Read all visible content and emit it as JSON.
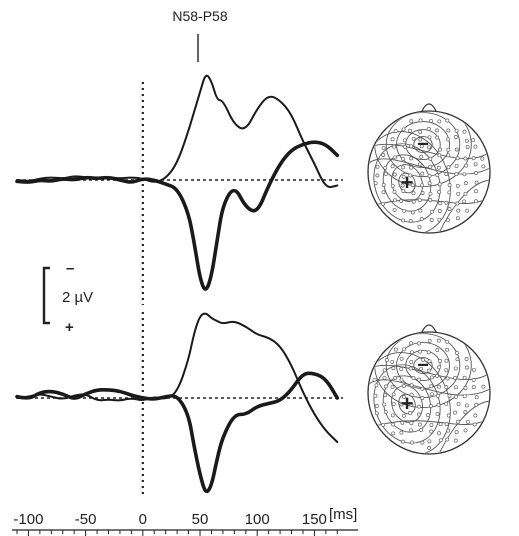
{
  "chart_data": {
    "type": "line",
    "annotation": "N58-P58",
    "scale_bar": {
      "label": "2 µV",
      "neg_sign": "–",
      "pos_sign": "+",
      "amplitude_uV": 2
    },
    "x_unit_label": "[ms]",
    "x_ticks": [
      -100,
      -50,
      0,
      50,
      100,
      150
    ],
    "xlim": [
      -110,
      175
    ],
    "ylim_uV": [
      -4.2,
      2.2
    ],
    "grid": false,
    "legend": "none",
    "map_signs": {
      "negative": "−",
      "positive": "+"
    },
    "panels": [
      {
        "series": [
          {
            "style": "thin",
            "x": [
              -110,
              -100,
              -90,
              -80,
              -70,
              -60,
              -50,
              -40,
              -30,
              -20,
              -10,
              0,
              10,
              20,
              30,
              40,
              45,
              50,
              55,
              60,
              65,
              70,
              80,
              90,
              100,
              110,
              120,
              130,
              140,
              150,
              160,
              170
            ],
            "y": [
              0,
              -0.05,
              0.05,
              0.1,
              0.05,
              0.15,
              0.1,
              0.05,
              0.1,
              0.05,
              0.1,
              0.05,
              -0.1,
              0.05,
              0.6,
              1.8,
              2.5,
              3.2,
              3.9,
              3.6,
              2.9,
              2.9,
              2.0,
              1.8,
              2.6,
              3.1,
              2.9,
              2.4,
              1.4,
              0.6,
              -0.3,
              -0.2
            ]
          },
          {
            "style": "thick",
            "x": [
              -110,
              -100,
              -90,
              -80,
              -70,
              -60,
              -50,
              -40,
              -30,
              -20,
              -10,
              0,
              10,
              20,
              30,
              40,
              45,
              50,
              55,
              60,
              65,
              70,
              80,
              90,
              100,
              110,
              120,
              130,
              140,
              150,
              160,
              170
            ],
            "y": [
              -0.05,
              -0.1,
              0.0,
              -0.05,
              0.05,
              0.0,
              0.1,
              0.05,
              0.1,
              0.0,
              -0.1,
              0.05,
              0.0,
              -0.15,
              -0.3,
              -1.2,
              -2.3,
              -3.6,
              -4.1,
              -3.5,
              -2.2,
              -0.9,
              -0.2,
              -1.0,
              -1.2,
              -0.2,
              0.6,
              1.1,
              1.3,
              1.4,
              1.3,
              0.9
            ]
          }
        ]
      },
      {
        "series": [
          {
            "style": "thin",
            "x": [
              -110,
              -100,
              -90,
              -80,
              -70,
              -60,
              -50,
              -40,
              -30,
              -20,
              -10,
              0,
              10,
              20,
              30,
              40,
              45,
              50,
              55,
              60,
              65,
              70,
              80,
              90,
              100,
              110,
              120,
              130,
              140,
              150,
              160,
              170
            ],
            "y": [
              0,
              0.05,
              0.15,
              0.05,
              -0.05,
              0.1,
              0.15,
              -0.1,
              -0.05,
              -0.1,
              0.0,
              -0.1,
              0.05,
              -0.05,
              0.2,
              1.4,
              2.4,
              3.0,
              3.1,
              2.9,
              2.8,
              2.7,
              2.8,
              2.6,
              2.3,
              2.2,
              1.9,
              1.2,
              0.2,
              -0.6,
              -1.2,
              -1.6
            ]
          },
          {
            "style": "thick",
            "x": [
              -110,
              -100,
              -90,
              -80,
              -70,
              -60,
              -50,
              -40,
              -30,
              -20,
              -10,
              0,
              10,
              20,
              30,
              40,
              45,
              50,
              55,
              60,
              65,
              70,
              80,
              90,
              100,
              110,
              120,
              130,
              140,
              150,
              160,
              170
            ],
            "y": [
              0.05,
              -0.05,
              0.2,
              0.25,
              0.15,
              -0.05,
              0.15,
              0.3,
              0.3,
              0.25,
              0.1,
              0.0,
              -0.05,
              0.05,
              0.1,
              -0.6,
              -1.8,
              -2.8,
              -3.5,
              -3.2,
              -2.2,
              -1.4,
              -0.6,
              -0.6,
              -0.3,
              -0.2,
              -0.1,
              0.3,
              0.9,
              0.9,
              0.7,
              0.0
            ]
          }
        ]
      }
    ]
  }
}
